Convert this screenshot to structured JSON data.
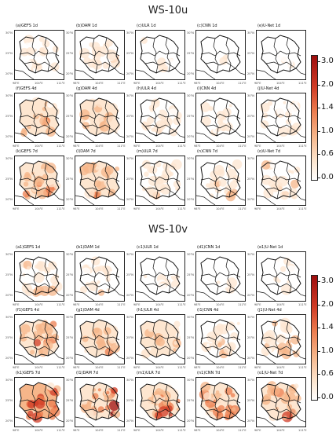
{
  "figures": [
    {
      "title": "WS-10u",
      "panels": [
        [
          "(a)GEFS 1d",
          "(b)DAM 1d",
          "(c)ULR 1d",
          "(c)CNN 1d",
          "(e)U-Net 1d"
        ],
        [
          "(f)GEFS 4d",
          "(g)DAM 4d",
          "(h)ULR 4d",
          "(i)CNN 4d",
          "(j)U-Net 4d"
        ],
        [
          "(k)GEFS 7d",
          "(l)DAM 7d",
          "(m)ULR 7d",
          "(n)CNN 7d",
          "(o)U-Net 7d"
        ]
      ],
      "intensity": [
        [
          0.3,
          0.28,
          0.18,
          0.16,
          0.16
        ],
        [
          0.42,
          0.4,
          0.28,
          0.24,
          0.26
        ],
        [
          0.55,
          0.5,
          0.34,
          0.32,
          0.34
        ]
      ],
      "colorbar_ticks": [
        "3.0",
        "2.0",
        "1.4",
        "1.0",
        "0.6",
        "0.0"
      ]
    },
    {
      "title": "WS-10v",
      "panels": [
        [
          "(a1)GEFS 1d",
          "(b1)DAM 1d",
          "(c1)ULR 1d",
          "(d1)CNN 1d",
          "(e1)U-Net 1d"
        ],
        [
          "(f1)GEFS 4d",
          "(g1)DAM 4d",
          "(h1)ULR 4d",
          "(i1)CNN 4d",
          "(j1)U-Net 4d"
        ],
        [
          "(k1)GEFS 7d",
          "(l1)DAM 7d",
          "(m1)ULR 7d",
          "(n1)CNN 7d",
          "(o1)U-Net 7d"
        ]
      ],
      "intensity": [
        [
          0.34,
          0.3,
          0.2,
          0.18,
          0.18
        ],
        [
          0.55,
          0.52,
          0.42,
          0.36,
          0.38
        ],
        [
          0.8,
          0.74,
          0.6,
          0.56,
          0.56
        ]
      ],
      "colorbar_ticks": [
        "3.0",
        "2.0",
        "1.4",
        "1.0",
        "0.6",
        "0.0"
      ]
    }
  ],
  "axis_ticks": {
    "lat": [
      "30°N",
      "25°N",
      "20°N"
    ],
    "lon": [
      "98°E",
      "104°E",
      "111°E"
    ]
  },
  "colormap": [
    "#ffffff",
    "#fde6d0",
    "#f6b68a",
    "#ec7d4f",
    "#d03b25",
    "#9e0d0d"
  ]
}
